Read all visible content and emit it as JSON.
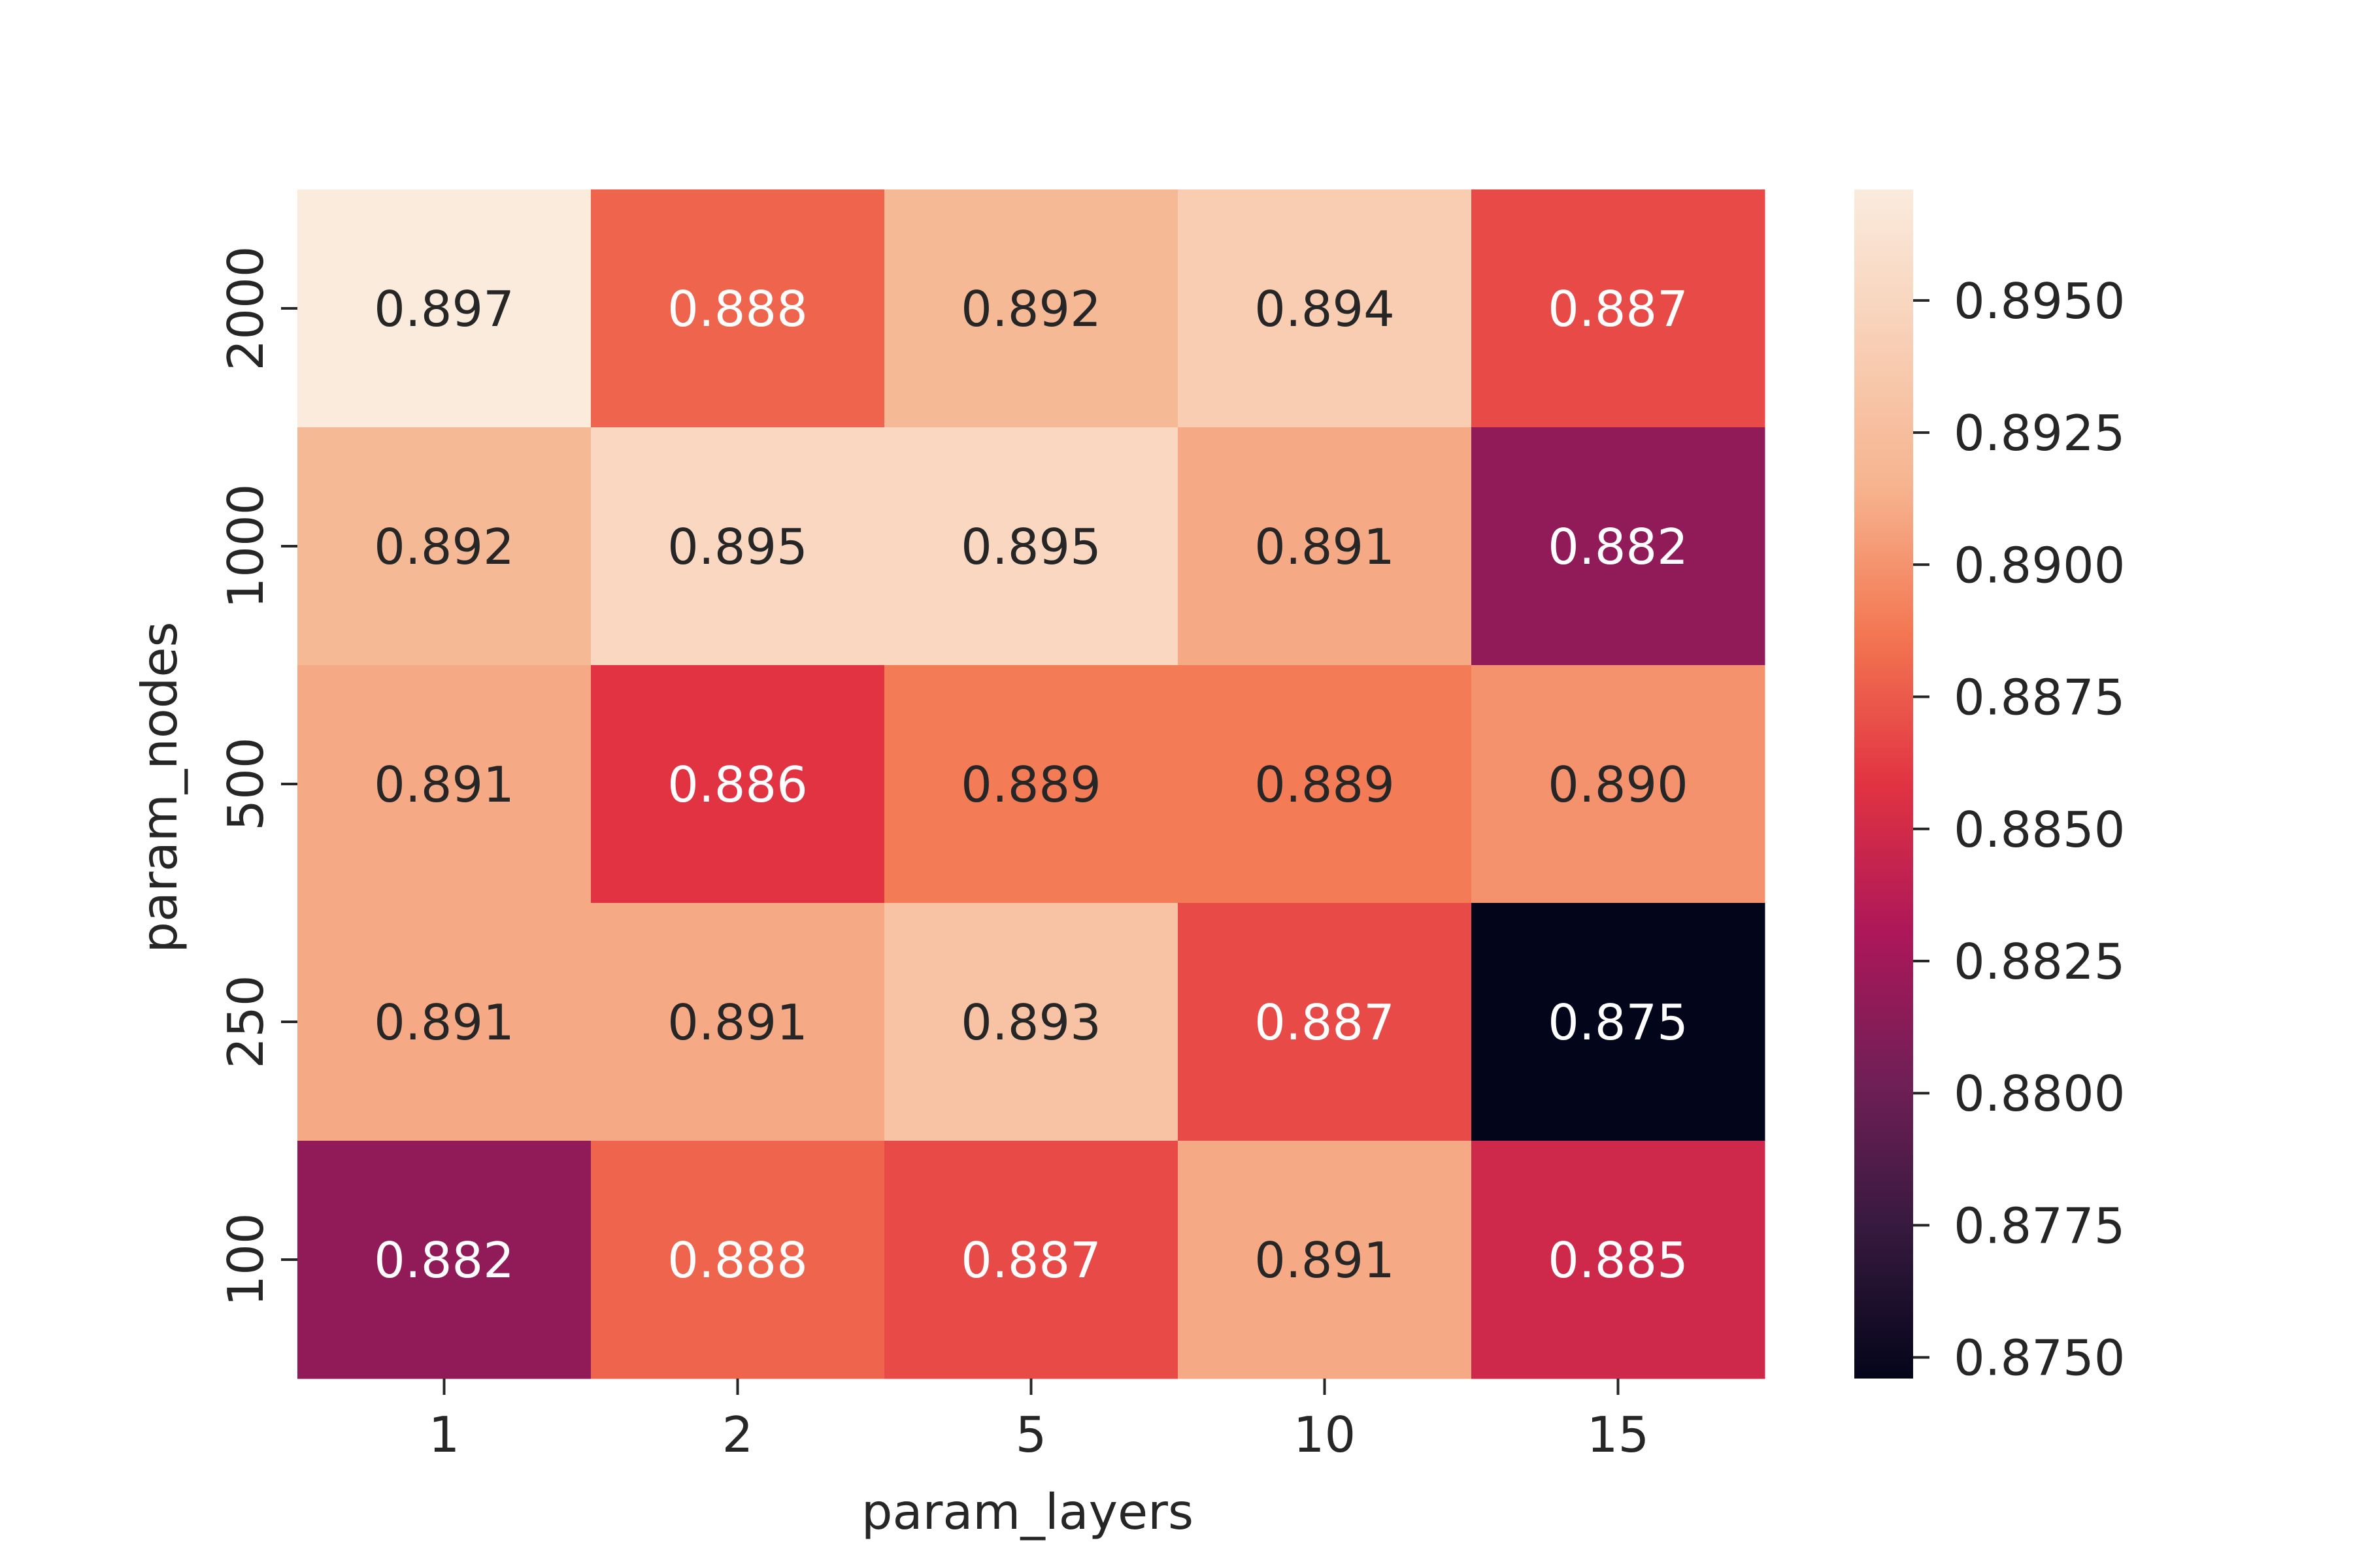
{
  "chart_data": {
    "type": "heatmap",
    "title": "",
    "xlabel": "param_layers",
    "ylabel": "param_nodes",
    "x_categories": [
      "1",
      "2",
      "5",
      "10",
      "15"
    ],
    "y_categories": [
      "2000",
      "1000",
      "500",
      "250",
      "100"
    ],
    "values": [
      [
        0.897,
        0.888,
        0.892,
        0.894,
        0.887
      ],
      [
        0.892,
        0.895,
        0.895,
        0.891,
        0.882
      ],
      [
        0.891,
        0.886,
        0.889,
        0.889,
        0.89
      ],
      [
        0.891,
        0.891,
        0.893,
        0.887,
        0.875
      ],
      [
        0.882,
        0.888,
        0.887,
        0.891,
        0.885
      ]
    ],
    "annotation_format": "0.000",
    "colorbar": {
      "colormap": "rocket",
      "min": 0.875,
      "max": 0.897,
      "ticks": [
        "0.8750",
        "0.8775",
        "0.8800",
        "0.8825",
        "0.8850",
        "0.8875",
        "0.8900",
        "0.8925",
        "0.8950"
      ]
    }
  }
}
